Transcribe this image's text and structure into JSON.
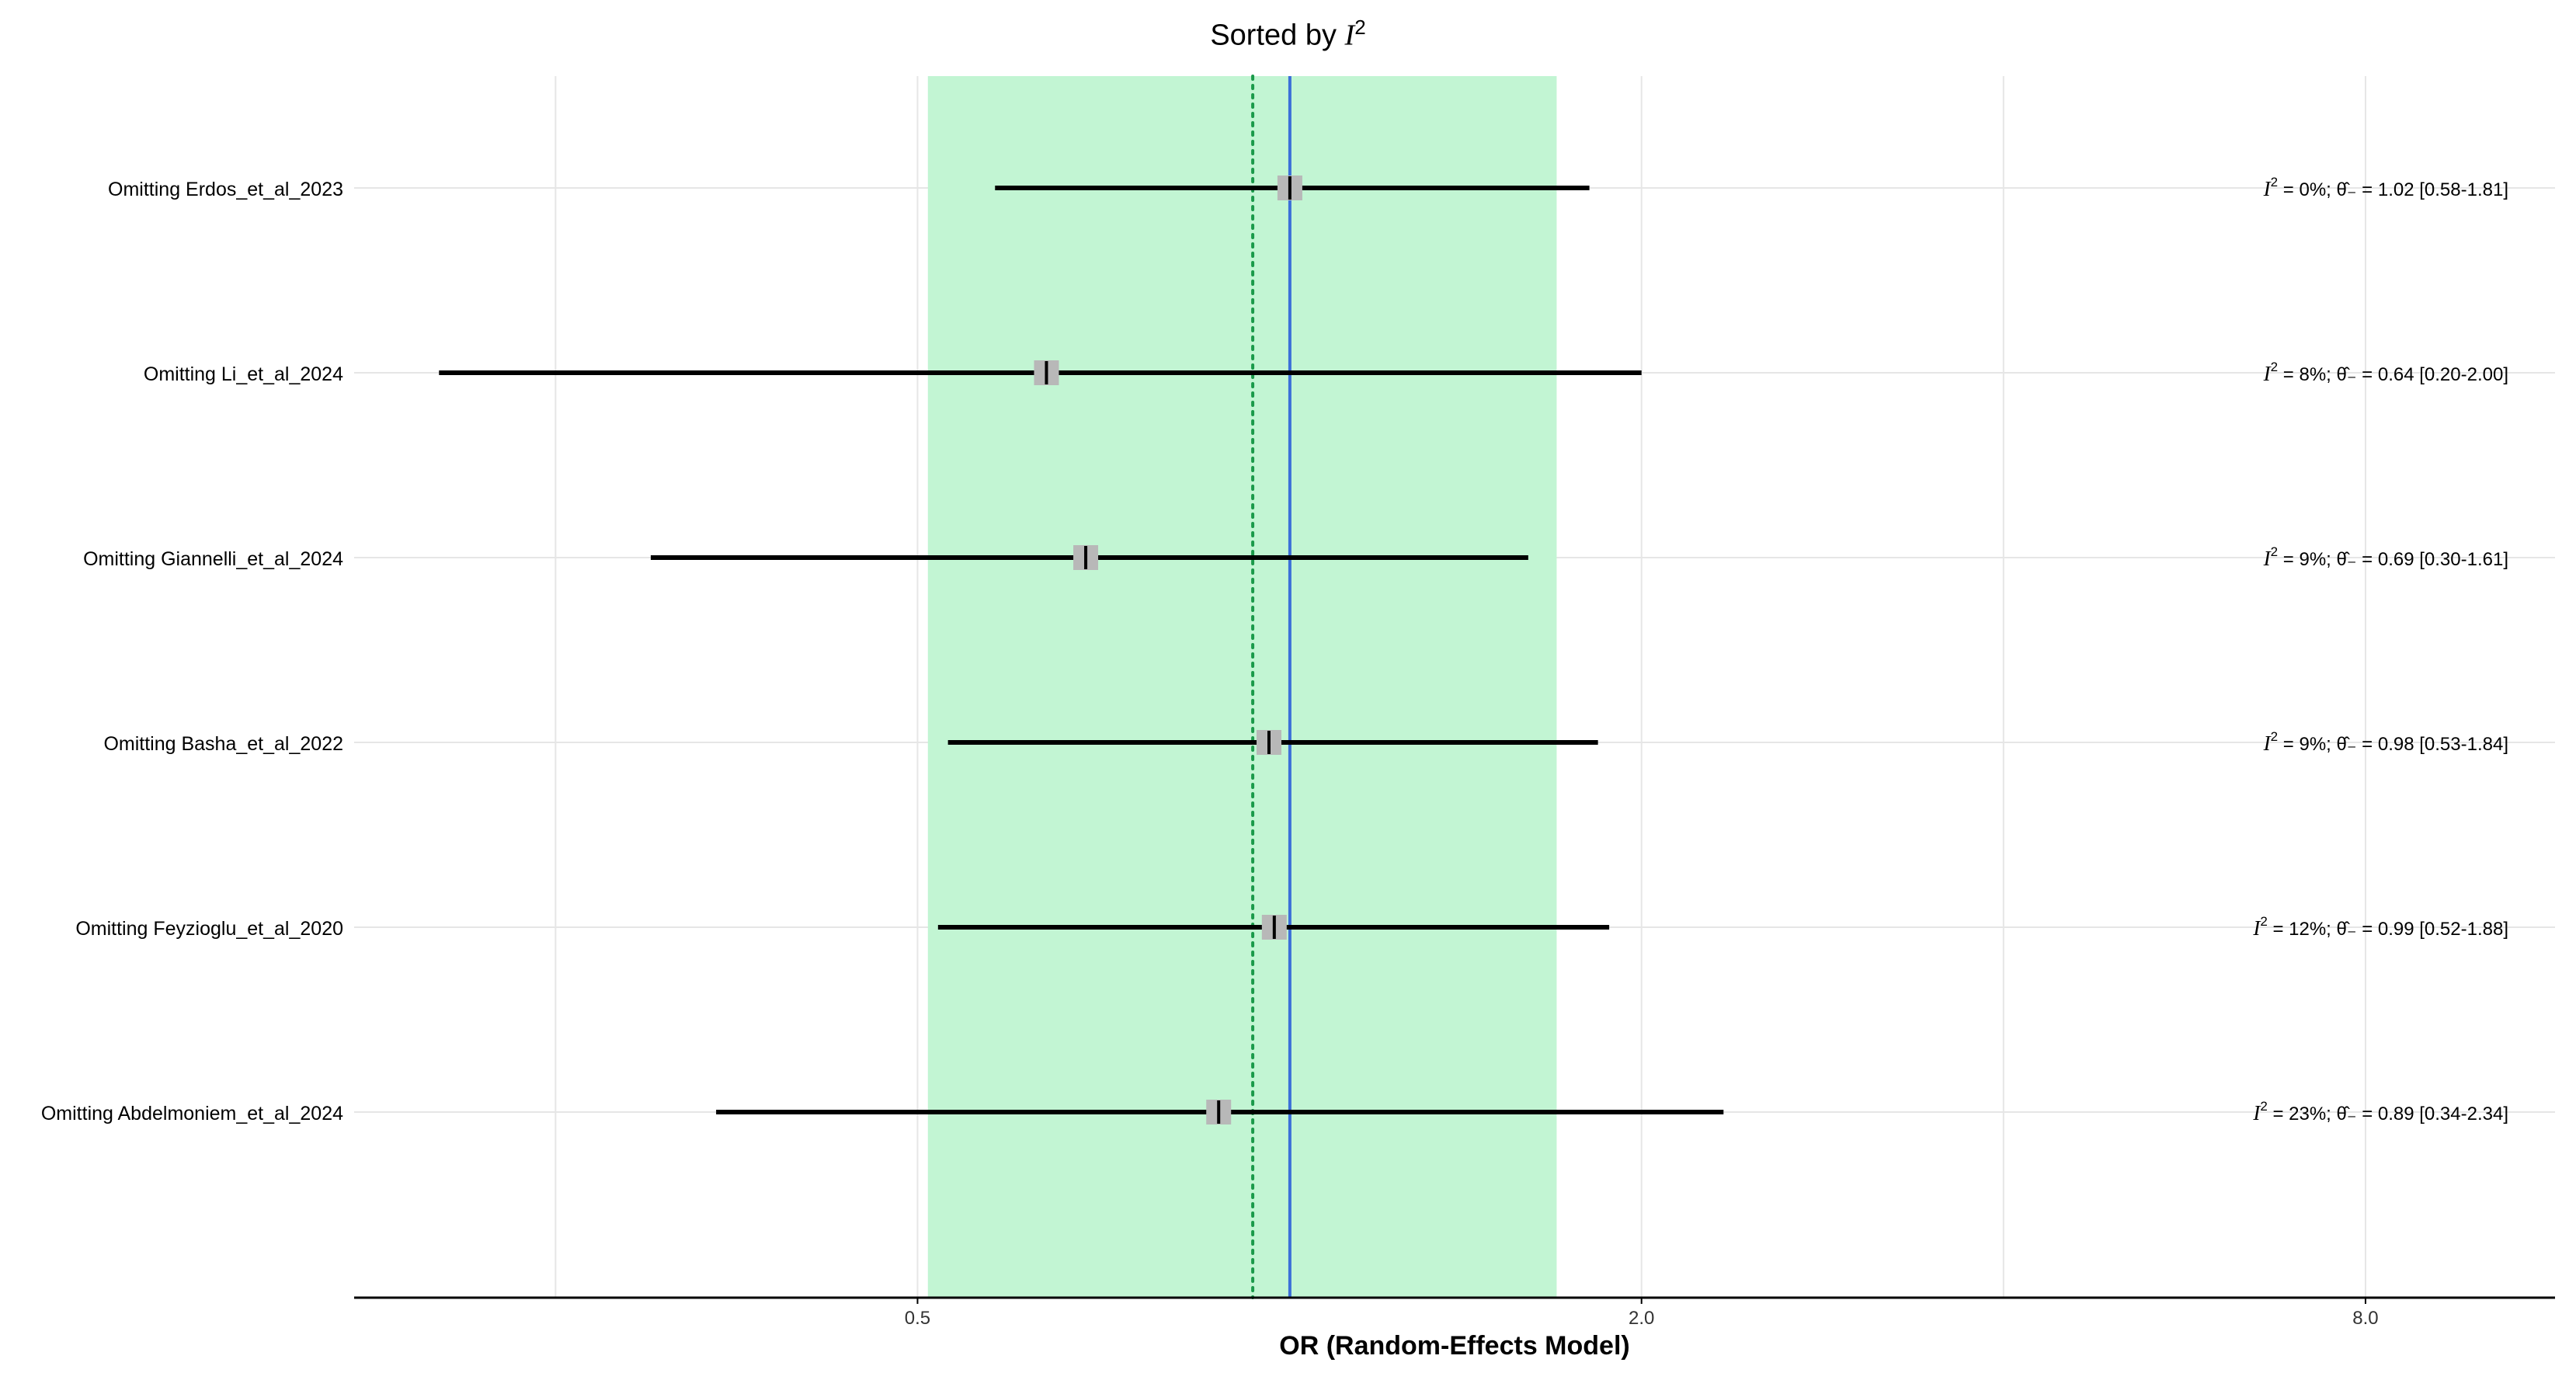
{
  "chart_data": {
    "type": "forest",
    "title_prefix": "Sorted by",
    "title_symbol": "I",
    "title_exponent": "2",
    "xlabel": "OR (Random-Effects Model)",
    "x_scale": "log2",
    "xlim": [
      0.17,
      11.5
    ],
    "x_ticks": [
      0.5,
      2.0,
      8.0
    ],
    "x_tick_labels": [
      "0.5",
      "2.0",
      "8.0"
    ],
    "overall_estimate": 1.02,
    "overall_ci": [
      0.51,
      1.7
    ],
    "null_line": 0.95,
    "rows": [
      {
        "label": "Omitting Erdos_et_al_2023",
        "or": 1.02,
        "lower": 0.58,
        "upper": 1.81,
        "i2": "0%",
        "annotation": "= 1.02 [0.58-1.81]"
      },
      {
        "label": "Omitting Li_et_al_2024",
        "or": 0.64,
        "lower": 0.2,
        "upper": 2.0,
        "i2": "8%",
        "annotation": "= 0.64 [0.20-2.00]"
      },
      {
        "label": "Omitting Giannelli_et_al_2024",
        "or": 0.69,
        "lower": 0.3,
        "upper": 1.61,
        "i2": "9%",
        "annotation": "= 0.69 [0.30-1.61]"
      },
      {
        "label": "Omitting Basha_et_al_2022",
        "or": 0.98,
        "lower": 0.53,
        "upper": 1.84,
        "i2": "9%",
        "annotation": "= 0.98 [0.53-1.84]"
      },
      {
        "label": "Omitting Feyzioglu_et_al_2020",
        "or": 0.99,
        "lower": 0.52,
        "upper": 1.88,
        "i2": "12%",
        "annotation": "= 0.99 [0.52-1.88]"
      },
      {
        "label": "Omitting Abdelmoniem_et_al_2024",
        "or": 0.89,
        "lower": 0.34,
        "upper": 2.34,
        "i2": "23%",
        "annotation": "= 0.89 [0.34-2.34]"
      }
    ],
    "colors": {
      "ci_band": "#c2f5d3",
      "overall_line": "#3b6fd8",
      "null_line": "#1a9a4a",
      "whisker": "#000000",
      "point_box": "#b8b8b8",
      "grid": "#e6e6e6",
      "axis": "#000000"
    }
  }
}
